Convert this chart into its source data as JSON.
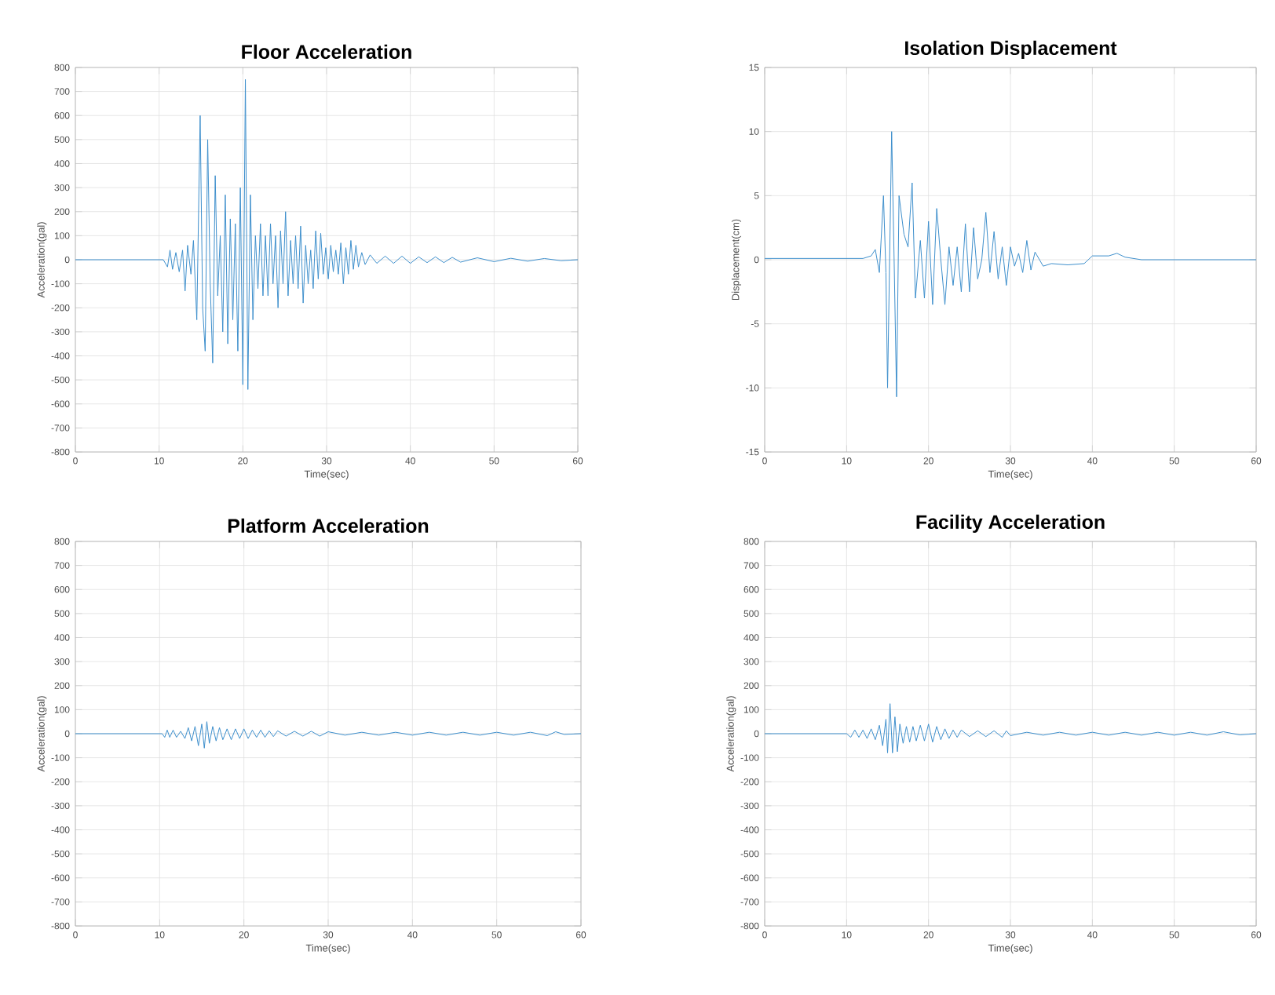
{
  "chart_data": [
    {
      "type": "line",
      "title": "Floor Acceleration",
      "xlabel": "Time(sec)",
      "ylabel": "Acceleration(gal)",
      "color": "#3d8fcc",
      "grid": true,
      "xlim": [
        0,
        60
      ],
      "xticks": [
        0,
        10,
        20,
        30,
        40,
        50,
        60
      ],
      "ylim": [
        -800,
        800
      ],
      "yticks": [
        -800,
        -700,
        -600,
        -500,
        -400,
        -300,
        -200,
        -100,
        0,
        100,
        200,
        300,
        400,
        500,
        600,
        700,
        800
      ],
      "x": [
        0,
        10.5,
        11,
        11.3,
        11.6,
        12,
        12.4,
        12.8,
        13.1,
        13.4,
        13.8,
        14.1,
        14.5,
        14.9,
        15.2,
        15.5,
        15.8,
        16.1,
        16.4,
        16.7,
        17,
        17.3,
        17.6,
        17.9,
        18.2,
        18.5,
        18.8,
        19.1,
        19.4,
        19.7,
        20,
        20.3,
        20.6,
        20.9,
        21.2,
        21.5,
        21.8,
        22.1,
        22.4,
        22.7,
        23,
        23.3,
        23.6,
        23.9,
        24.2,
        24.5,
        24.8,
        25.1,
        25.4,
        25.7,
        26,
        26.3,
        26.6,
        26.9,
        27.2,
        27.5,
        27.8,
        28.1,
        28.4,
        28.7,
        29,
        29.3,
        29.6,
        29.9,
        30.2,
        30.5,
        30.8,
        31.1,
        31.4,
        31.7,
        32,
        32.3,
        32.6,
        32.9,
        33.2,
        33.5,
        33.8,
        34.2,
        34.6,
        35.2,
        36,
        37,
        38,
        39,
        40,
        41,
        42,
        43,
        44,
        45,
        46,
        48,
        50,
        52,
        54,
        56,
        58,
        60
      ],
      "values": [
        0,
        0,
        -30,
        40,
        -40,
        30,
        -50,
        40,
        -130,
        60,
        -60,
        80,
        -250,
        600,
        -200,
        -380,
        500,
        -100,
        -430,
        350,
        -150,
        100,
        -300,
        270,
        -350,
        170,
        -250,
        150,
        -380,
        300,
        -520,
        750,
        -540,
        270,
        -250,
        100,
        -120,
        150,
        -150,
        100,
        -150,
        150,
        -100,
        100,
        -200,
        120,
        -100,
        200,
        -150,
        80,
        -100,
        100,
        -120,
        140,
        -180,
        60,
        -100,
        40,
        -120,
        120,
        -80,
        110,
        -60,
        50,
        -80,
        60,
        -50,
        40,
        -60,
        70,
        -100,
        50,
        -60,
        80,
        -40,
        60,
        -30,
        30,
        -20,
        20,
        -15,
        15,
        -15,
        15,
        -15,
        12,
        -12,
        12,
        -12,
        10,
        -10,
        8,
        -8,
        6,
        -6,
        5,
        -4,
        0
      ]
    },
    {
      "type": "line",
      "title": "Isolation Displacement",
      "xlabel": "Time(sec)",
      "ylabel": "Displacement(cm)",
      "color": "#3d8fcc",
      "grid": true,
      "xlim": [
        0,
        60
      ],
      "xticks": [
        0,
        10,
        20,
        30,
        40,
        50,
        60
      ],
      "ylim": [
        -15,
        15
      ],
      "yticks": [
        -15,
        -10,
        -5,
        0,
        5,
        10,
        15
      ],
      "x": [
        0,
        12,
        13,
        13.5,
        14,
        14.5,
        14.8,
        15,
        15.5,
        15.8,
        16.1,
        16.4,
        17,
        17.5,
        18,
        18.4,
        19,
        19.5,
        20,
        20.5,
        21,
        21.5,
        22,
        22.5,
        23,
        23.5,
        24,
        24.5,
        25,
        25.5,
        26,
        26.5,
        27,
        27.5,
        28,
        28.5,
        29,
        29.5,
        30,
        30.5,
        31,
        31.5,
        32,
        32.5,
        33,
        34,
        35,
        37,
        39,
        40,
        42,
        43,
        44,
        46,
        60
      ],
      "values": [
        0.1,
        0.1,
        0.3,
        0.8,
        -1,
        5,
        -1,
        -10,
        10,
        0,
        -10.7,
        5,
        2,
        1,
        6,
        -3,
        1.5,
        -3,
        3,
        -3.5,
        4,
        0,
        -3.5,
        1,
        -2,
        1,
        -2.5,
        2.8,
        -2.5,
        2.5,
        -1.5,
        0,
        3.7,
        -1,
        2.2,
        -1.5,
        1,
        -2,
        1,
        -0.5,
        0.5,
        -1,
        1.5,
        -0.8,
        0.6,
        -0.5,
        -0.3,
        -0.4,
        -0.3,
        0.3,
        0.3,
        0.5,
        0.2,
        0,
        0
      ]
    },
    {
      "type": "line",
      "title": "Platform Acceleration",
      "xlabel": "Time(sec)",
      "ylabel": "Acceleration(gal)",
      "color": "#3d8fcc",
      "grid": true,
      "xlim": [
        0,
        60
      ],
      "xticks": [
        0,
        10,
        20,
        30,
        40,
        50,
        60
      ],
      "ylim": [
        -800,
        800
      ],
      "yticks": [
        -800,
        -700,
        -600,
        -500,
        -400,
        -300,
        -200,
        -100,
        0,
        100,
        200,
        300,
        400,
        500,
        600,
        700,
        800
      ],
      "x": [
        0,
        10.3,
        10.6,
        10.9,
        11.2,
        11.6,
        12,
        12.5,
        13,
        13.4,
        13.8,
        14.2,
        14.6,
        15,
        15.3,
        15.6,
        15.9,
        16.3,
        16.7,
        17.1,
        17.5,
        18,
        18.5,
        19,
        19.5,
        20,
        20.5,
        21,
        21.5,
        22,
        22.5,
        23,
        23.5,
        24,
        25,
        26,
        27,
        28,
        29,
        30,
        32,
        34,
        36,
        38,
        40,
        42,
        44,
        46,
        48,
        50,
        52,
        54,
        56,
        57,
        58,
        60
      ],
      "values": [
        0,
        0,
        -15,
        15,
        -15,
        15,
        -15,
        10,
        -20,
        25,
        -30,
        30,
        -50,
        40,
        -60,
        50,
        -40,
        30,
        -30,
        25,
        -25,
        20,
        -25,
        20,
        -20,
        20,
        -20,
        15,
        -15,
        15,
        -15,
        12,
        -12,
        12,
        -10,
        10,
        -10,
        10,
        -10,
        8,
        -6,
        6,
        -6,
        6,
        -6,
        6,
        -6,
        6,
        -6,
        6,
        -6,
        6,
        -8,
        8,
        -3,
        0
      ]
    },
    {
      "type": "line",
      "title": "Facility Acceleration",
      "xlabel": "Time(sec)",
      "ylabel": "Acceleration(gal)",
      "color": "#3d8fcc",
      "grid": true,
      "xlim": [
        0,
        60
      ],
      "xticks": [
        0,
        10,
        20,
        30,
        40,
        50,
        60
      ],
      "ylim": [
        -800,
        800
      ],
      "yticks": [
        -800,
        -700,
        -600,
        -500,
        -400,
        -300,
        -200,
        -100,
        0,
        100,
        200,
        300,
        400,
        500,
        600,
        700,
        800
      ],
      "x": [
        0,
        10,
        10.5,
        11,
        11.5,
        12,
        12.5,
        13,
        13.5,
        14,
        14.4,
        14.8,
        15,
        15.3,
        15.6,
        15.9,
        16.2,
        16.5,
        16.9,
        17.3,
        17.7,
        18.1,
        18.5,
        19,
        19.5,
        20,
        20.5,
        21,
        21.5,
        22,
        22.5,
        23,
        23.5,
        24,
        25,
        26,
        27,
        28,
        29,
        29.5,
        30,
        32,
        34,
        36,
        38,
        40,
        42,
        44,
        46,
        48,
        50,
        52,
        54,
        56,
        58,
        60
      ],
      "values": [
        0,
        0,
        -15,
        15,
        -15,
        15,
        -20,
        20,
        -25,
        35,
        -50,
        60,
        -80,
        125,
        -80,
        70,
        -75,
        40,
        -40,
        30,
        -35,
        30,
        -30,
        35,
        -30,
        40,
        -35,
        30,
        -25,
        20,
        -20,
        15,
        -15,
        15,
        -12,
        12,
        -12,
        12,
        -15,
        12,
        -8,
        6,
        -6,
        6,
        -6,
        6,
        -6,
        6,
        -6,
        6,
        -6,
        6,
        -6,
        8,
        -5,
        0
      ]
    }
  ]
}
